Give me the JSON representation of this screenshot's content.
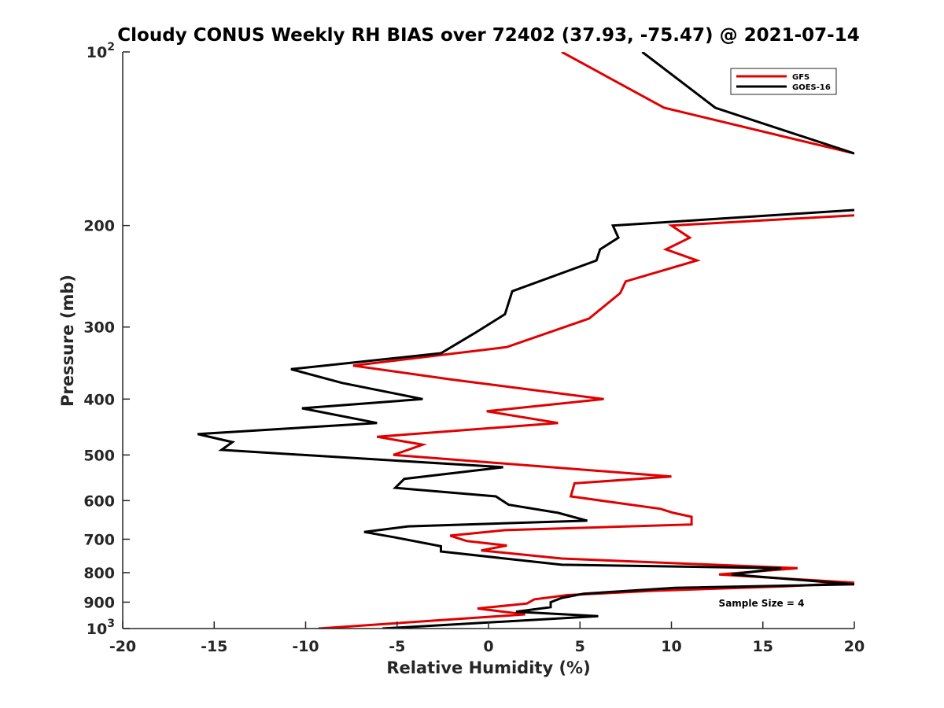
{
  "chart_data": {
    "type": "line",
    "title": "Cloudy CONUS Weekly RH BIAS over 72402 (37.93, -75.47) @ 2021-07-14",
    "xlabel": "Relative Humidity (%)",
    "ylabel": "Pressure (mb)",
    "xlim": [
      -20,
      20
    ],
    "ylim": [
      100,
      1000
    ],
    "y_scale": "log",
    "y_reversed": true,
    "grid": false,
    "legend_position": "top-right",
    "xticks": [
      "-20",
      "-15",
      "-10",
      "-5",
      "0",
      "5",
      "10",
      "15",
      "20"
    ],
    "yticks": [
      {
        "value": 100,
        "label": "10",
        "exp": "2"
      },
      {
        "value": 200,
        "label": "200"
      },
      {
        "value": 300,
        "label": "300"
      },
      {
        "value": 400,
        "label": "400"
      },
      {
        "value": 500,
        "label": "500"
      },
      {
        "value": 600,
        "label": "600"
      },
      {
        "value": 700,
        "label": "700"
      },
      {
        "value": 800,
        "label": "800"
      },
      {
        "value": 900,
        "label": "900"
      },
      {
        "value": 1000,
        "label": "10",
        "exp": "3"
      }
    ],
    "annotation": "Sample Size = 4",
    "series": [
      {
        "name": "GFS",
        "color": "#e00000",
        "points": [
          [
            4.0,
            100
          ],
          [
            9.6,
            125
          ],
          [
            20.0,
            150
          ],
          [
            null,
            null
          ],
          [
            20.0,
            192
          ],
          [
            10.0,
            200
          ],
          [
            11.0,
            210
          ],
          [
            9.7,
            220
          ],
          [
            11.4,
            230
          ],
          [
            7.5,
            250
          ],
          [
            7.2,
            262
          ],
          [
            5.5,
            290
          ],
          [
            1.0,
            325
          ],
          [
            -7.4,
            350
          ],
          [
            -2.0,
            370
          ],
          [
            6.3,
            400
          ],
          [
            -0.1,
            420
          ],
          [
            3.8,
            440
          ],
          [
            -6.1,
            465
          ],
          [
            -3.6,
            480
          ],
          [
            -5.2,
            500
          ],
          [
            10.0,
            545
          ],
          [
            4.7,
            560
          ],
          [
            4.5,
            590
          ],
          [
            9.4,
            620
          ],
          [
            10.1,
            630
          ],
          [
            11.1,
            640
          ],
          [
            11.1,
            660
          ],
          [
            0.9,
            675
          ],
          [
            -2.1,
            690
          ],
          [
            -1.2,
            705
          ],
          [
            1.0,
            718
          ],
          [
            -0.4,
            732
          ],
          [
            4.0,
            756
          ],
          [
            16.9,
            786
          ],
          [
            12.6,
            806
          ],
          [
            20.0,
            833
          ],
          [
            16.2,
            845
          ],
          [
            9.0,
            860
          ],
          [
            4.3,
            875
          ],
          [
            2.5,
            890
          ],
          [
            2.1,
            905
          ],
          [
            -0.6,
            923
          ],
          [
            2.0,
            945
          ],
          [
            -9.3,
            1000
          ]
        ]
      },
      {
        "name": "GOES-16",
        "color": "#000000",
        "points": [
          [
            8.4,
            100
          ],
          [
            12.4,
            125
          ],
          [
            20.0,
            150
          ],
          [
            null,
            null
          ],
          [
            20.0,
            188
          ],
          [
            6.8,
            200
          ],
          [
            7.1,
            210
          ],
          [
            6.1,
            220
          ],
          [
            5.9,
            230
          ],
          [
            1.3,
            260
          ],
          [
            0.9,
            285
          ],
          [
            -0.8,
            308
          ],
          [
            -2.6,
            333
          ],
          [
            -10.8,
            355
          ],
          [
            -8.0,
            375
          ],
          [
            -3.6,
            400
          ],
          [
            -10.2,
            415
          ],
          [
            -6.1,
            440
          ],
          [
            -15.9,
            460
          ],
          [
            -14.0,
            475
          ],
          [
            -14.6,
            490
          ],
          [
            0.8,
            525
          ],
          [
            -4.6,
            550
          ],
          [
            -5.1,
            570
          ],
          [
            0.4,
            590
          ],
          [
            1.1,
            610
          ],
          [
            3.8,
            630
          ],
          [
            5.4,
            650
          ],
          [
            -4.4,
            665
          ],
          [
            -6.8,
            680
          ],
          [
            -5.1,
            695
          ],
          [
            -2.6,
            720
          ],
          [
            -2.6,
            735
          ],
          [
            4.0,
            775
          ],
          [
            16.0,
            786
          ],
          [
            13.3,
            806
          ],
          [
            20.0,
            838
          ],
          [
            10.2,
            850
          ],
          [
            5.2,
            870
          ],
          [
            4.0,
            885
          ],
          [
            3.4,
            900
          ],
          [
            3.4,
            918
          ],
          [
            1.5,
            935
          ],
          [
            6.0,
            952
          ],
          [
            -5.8,
            1000
          ]
        ]
      }
    ]
  }
}
